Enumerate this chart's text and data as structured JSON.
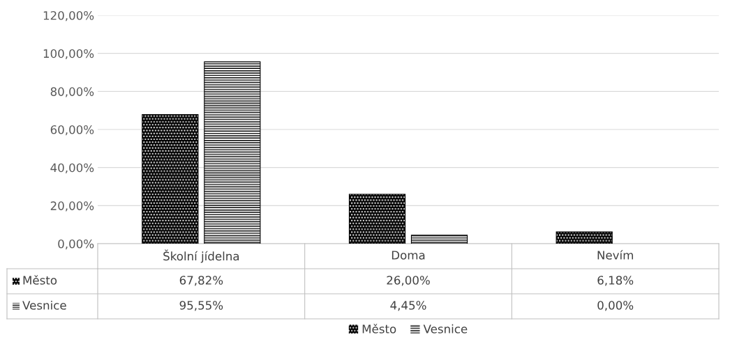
{
  "chart_data": {
    "type": "bar",
    "categories": [
      "Školní jídelna",
      "Doma",
      "Nevím"
    ],
    "series": [
      {
        "name": "Město",
        "color": "#000000",
        "values": [
          67.82,
          26.0,
          6.18
        ],
        "value_labels": [
          "67,82%",
          "26,00%",
          "6,18%"
        ]
      },
      {
        "name": "Vesnice",
        "color": "#ffffff",
        "values": [
          95.55,
          4.45,
          0.0
        ],
        "value_labels": [
          "95,55%",
          "4,45%",
          "0,00%"
        ]
      }
    ],
    "ylim": [
      0,
      120
    ],
    "yticks": [
      {
        "value": 0,
        "label": "0,00%"
      },
      {
        "value": 20,
        "label": "20,00%"
      },
      {
        "value": 40,
        "label": "40,00%"
      },
      {
        "value": 60,
        "label": "60,00%"
      },
      {
        "value": 80,
        "label": "80,00%"
      },
      {
        "value": 100,
        "label": "100,00%"
      },
      {
        "value": 120,
        "label": "120,00%"
      }
    ],
    "grid": "y",
    "legend": "bottom",
    "data_labels": true
  }
}
